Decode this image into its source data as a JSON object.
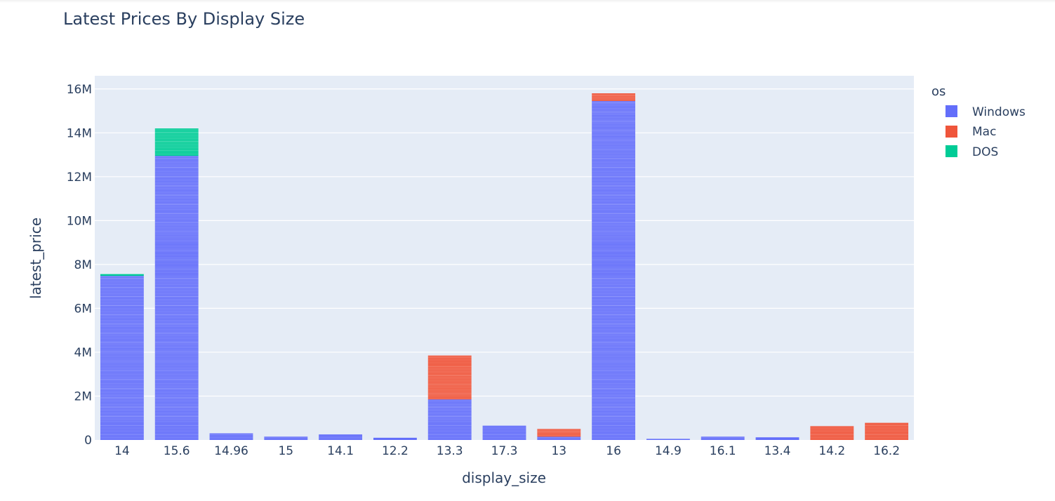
{
  "chart_data": {
    "type": "bar",
    "barmode": "stack",
    "title": "Latest Prices By Display Size",
    "xlabel": "display_size",
    "ylabel": "latest_price",
    "ylim": [
      0,
      16600000
    ],
    "yticks": [
      {
        "value": 0,
        "label": "0"
      },
      {
        "value": 2000000,
        "label": "2M"
      },
      {
        "value": 4000000,
        "label": "4M"
      },
      {
        "value": 6000000,
        "label": "6M"
      },
      {
        "value": 8000000,
        "label": "8M"
      },
      {
        "value": 10000000,
        "label": "10M"
      },
      {
        "value": 12000000,
        "label": "12M"
      },
      {
        "value": 14000000,
        "label": "14M"
      },
      {
        "value": 16000000,
        "label": "16M"
      }
    ],
    "categories": [
      "14",
      "15.6",
      "14.96",
      "15",
      "14.1",
      "12.2",
      "13.3",
      "17.3",
      "13",
      "16",
      "14.9",
      "16.1",
      "13.4",
      "14.2",
      "16.2"
    ],
    "series": [
      {
        "name": "Windows",
        "color": "#636efa",
        "values": [
          7480000,
          12950000,
          300000,
          150000,
          250000,
          100000,
          1850000,
          650000,
          150000,
          15450000,
          50000,
          150000,
          120000,
          0,
          0
        ]
      },
      {
        "name": "Mac",
        "color": "#ef553b",
        "values": [
          0,
          0,
          0,
          0,
          0,
          0,
          2000000,
          0,
          350000,
          350000,
          0,
          0,
          0,
          630000,
          780000
        ]
      },
      {
        "name": "DOS",
        "color": "#00cc96",
        "values": [
          80000,
          1250000,
          0,
          0,
          0,
          0,
          0,
          0,
          0,
          0,
          0,
          0,
          0,
          0,
          0
        ]
      }
    ],
    "legend": {
      "title": "os",
      "position": "right"
    },
    "grid": true
  }
}
